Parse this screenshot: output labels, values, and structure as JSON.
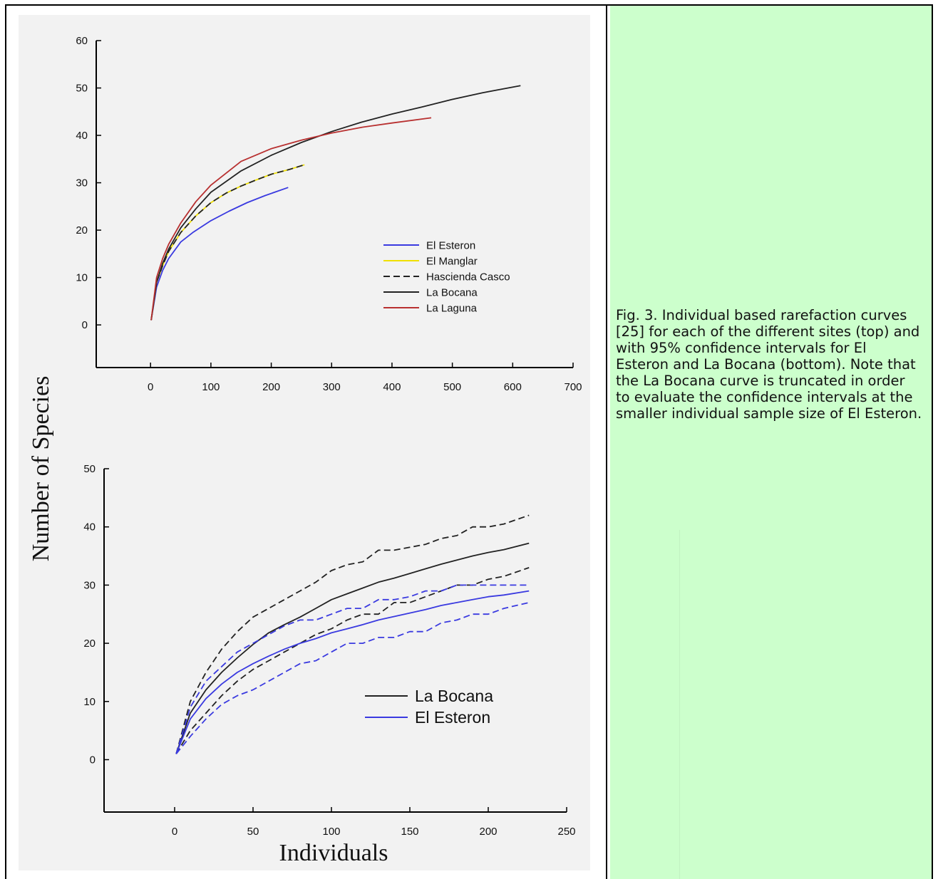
{
  "caption": "Fig. 3.  Individual based rarefaction curves [25] for each of the different sites (top) and with 95% confidence intervals for El Esteron and La Bocana (bottom). Note that the La Bocana curve is truncated in order to evaluate the confidence intervals at the smaller individual sample size of El Esteron.",
  "y_axis_title": "Number of Species",
  "x_axis_title": "Individuals",
  "colors": {
    "blue": "#3a3ae0",
    "yellow": "#f0e000",
    "black": "#222222",
    "red": "#b83030"
  },
  "chart_data": [
    {
      "type": "line",
      "title": "",
      "xlim": [
        -90,
        700
      ],
      "ylim": [
        -9,
        60
      ],
      "xticks": [
        0,
        100,
        200,
        300,
        400,
        500,
        600,
        700
      ],
      "yticks": [
        0,
        10,
        20,
        30,
        40,
        50,
        60
      ],
      "legend_position": "right",
      "series": [
        {
          "name": "El Esteron",
          "color": "#3a3ae0",
          "dash": false,
          "x": [
            1,
            10,
            20,
            30,
            50,
            70,
            100,
            130,
            160,
            190,
            228
          ],
          "y": [
            1,
            8,
            11.5,
            14,
            17.5,
            19.5,
            22,
            24,
            25.8,
            27.3,
            29
          ]
        },
        {
          "name": "El Manglar",
          "color": "#f0e000",
          "dash": false,
          "x": [
            1,
            10,
            20,
            30,
            50,
            75,
            100,
            125,
            150,
            175,
            200,
            230,
            255
          ],
          "y": [
            1,
            9,
            12.5,
            15.5,
            19.5,
            23,
            25.8,
            27.8,
            29.3,
            30.6,
            31.8,
            32.8,
            33.8
          ]
        },
        {
          "name": "Hascienda Casco",
          "color": "#222222",
          "dash": true,
          "x": [
            1,
            10,
            20,
            30,
            50,
            75,
            100,
            125,
            150,
            175,
            200,
            230,
            255
          ],
          "y": [
            1,
            9,
            12.5,
            15.5,
            19.5,
            23,
            25.8,
            27.8,
            29.3,
            30.6,
            31.8,
            32.8,
            33.8
          ]
        },
        {
          "name": "La Bocana",
          "color": "#222222",
          "dash": false,
          "x": [
            1,
            10,
            20,
            30,
            50,
            75,
            100,
            150,
            200,
            250,
            300,
            350,
            400,
            450,
            500,
            550,
            613
          ],
          "y": [
            1,
            9,
            13,
            16,
            20.5,
            24.5,
            28,
            32.5,
            35.8,
            38.5,
            40.8,
            42.8,
            44.5,
            46,
            47.6,
            49,
            50.5
          ]
        },
        {
          "name": "La Laguna",
          "color": "#b83030",
          "dash": false,
          "x": [
            1,
            10,
            20,
            30,
            50,
            75,
            100,
            150,
            200,
            250,
            300,
            350,
            400,
            465
          ],
          "y": [
            1,
            10,
            14,
            17,
            21.5,
            26,
            29.5,
            34.5,
            37.2,
            39,
            40.5,
            41.7,
            42.6,
            43.7
          ]
        }
      ]
    },
    {
      "type": "line",
      "title": "",
      "xlim": [
        -45,
        250
      ],
      "ylim": [
        -9,
        50
      ],
      "xticks": [
        0,
        50,
        100,
        150,
        200,
        250
      ],
      "yticks": [
        0,
        10,
        20,
        30,
        40,
        50
      ],
      "legend_position": "bottom-right",
      "series": [
        {
          "name": "La Bocana",
          "color": "#222222",
          "dash": false,
          "show_in_legend": true,
          "x": [
            1,
            10,
            20,
            30,
            40,
            50,
            60,
            70,
            80,
            90,
            100,
            110,
            120,
            130,
            140,
            150,
            160,
            170,
            180,
            190,
            200,
            210,
            226
          ],
          "y": [
            1,
            8,
            12,
            15,
            17.5,
            19.8,
            21.8,
            23.2,
            24.5,
            26,
            27.5,
            28.5,
            29.5,
            30.5,
            31.2,
            32,
            32.8,
            33.6,
            34.3,
            35,
            35.6,
            36.1,
            37.2
          ]
        },
        {
          "name": "",
          "color": "#222222",
          "dash": true,
          "show_in_legend": false,
          "x": [
            1,
            10,
            20,
            30,
            40,
            50,
            60,
            70,
            80,
            90,
            100,
            110,
            120,
            130,
            140,
            150,
            160,
            170,
            180,
            190,
            200,
            210,
            226
          ],
          "y": [
            1,
            10,
            15,
            19,
            22,
            24.5,
            26,
            27.5,
            29,
            30.5,
            32.5,
            33.5,
            34,
            36,
            36,
            36.5,
            37,
            38,
            38.5,
            40,
            40,
            40.5,
            42
          ]
        },
        {
          "name": "",
          "color": "#222222",
          "dash": true,
          "show_in_legend": false,
          "x": [
            1,
            10,
            20,
            30,
            40,
            50,
            60,
            70,
            80,
            90,
            100,
            110,
            120,
            130,
            140,
            150,
            160,
            170,
            180,
            190,
            200,
            210,
            226
          ],
          "y": [
            1,
            5,
            8,
            11,
            13.5,
            15.5,
            17,
            18.5,
            20,
            21.5,
            22.5,
            24,
            25,
            25,
            27,
            27,
            28,
            29,
            30,
            30,
            31,
            31.5,
            33
          ]
        },
        {
          "name": "El Esteron",
          "color": "#3a3ae0",
          "dash": false,
          "show_in_legend": true,
          "x": [
            1,
            10,
            20,
            30,
            40,
            50,
            60,
            70,
            80,
            90,
            100,
            110,
            120,
            130,
            140,
            150,
            160,
            170,
            180,
            190,
            200,
            210,
            226
          ],
          "y": [
            1,
            7,
            10.5,
            13,
            15,
            16.5,
            17.8,
            19,
            20,
            20.8,
            21.8,
            22.5,
            23.2,
            24,
            24.6,
            25.2,
            25.8,
            26.5,
            27,
            27.5,
            28,
            28.3,
            29
          ]
        },
        {
          "name": "",
          "color": "#3a3ae0",
          "dash": true,
          "show_in_legend": false,
          "x": [
            1,
            10,
            20,
            30,
            40,
            50,
            60,
            70,
            80,
            90,
            100,
            110,
            120,
            130,
            140,
            150,
            160,
            170,
            180,
            190,
            200,
            210,
            226
          ],
          "y": [
            1,
            9,
            13.5,
            16,
            18.5,
            20,
            21.5,
            23,
            24,
            24,
            25,
            26,
            26,
            27.5,
            27.5,
            28,
            29,
            29,
            30,
            30,
            30,
            30,
            30
          ]
        },
        {
          "name": "",
          "color": "#3a3ae0",
          "dash": true,
          "show_in_legend": false,
          "x": [
            1,
            10,
            20,
            30,
            40,
            50,
            60,
            70,
            80,
            90,
            100,
            110,
            120,
            130,
            140,
            150,
            160,
            170,
            180,
            190,
            200,
            210,
            226
          ],
          "y": [
            1,
            4,
            7,
            9.5,
            11,
            12,
            13.5,
            15,
            16.5,
            17,
            18.5,
            20,
            20,
            21,
            21,
            22,
            22,
            23.5,
            24,
            25,
            25,
            26,
            27
          ]
        }
      ]
    }
  ]
}
